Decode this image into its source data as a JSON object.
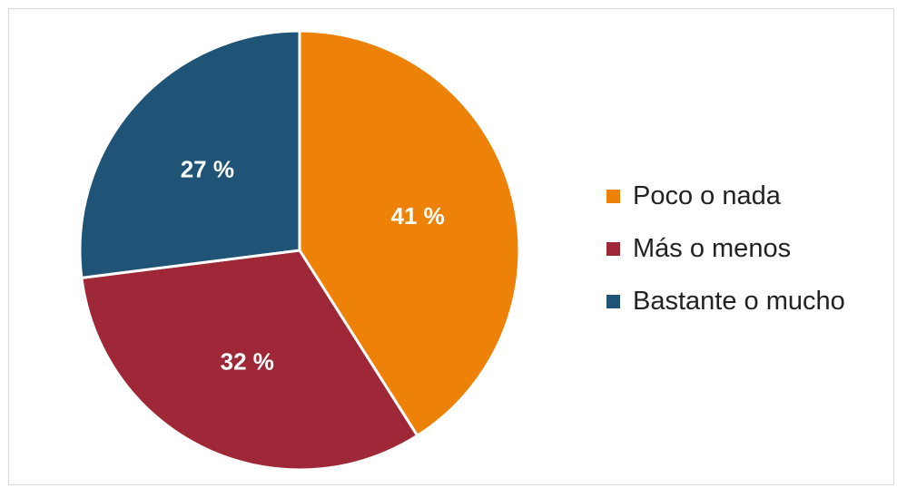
{
  "chart_data": {
    "type": "pie",
    "categories": [
      "Poco o nada",
      "Más o menos",
      "Bastante o mucho"
    ],
    "values": [
      41,
      32,
      27
    ],
    "value_labels": [
      "41 %",
      "32 %",
      "27 %"
    ],
    "colors": [
      "#ee8209",
      "#9e2838",
      "#1f5476"
    ],
    "start_angle": "12 o'clock",
    "direction": "clockwise",
    "legend": "right"
  }
}
